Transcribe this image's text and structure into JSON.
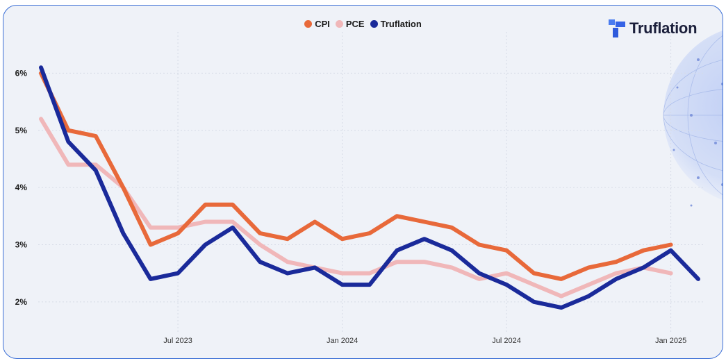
{
  "logo": {
    "text": "Truflation"
  },
  "colors": {
    "CPI": "#e8693a",
    "PCE": "#f0b7b9",
    "Truflation": "#1a2a9a"
  },
  "chart_data": {
    "type": "line",
    "x": [
      "2023-02",
      "2023-03",
      "2023-04",
      "2023-05",
      "2023-06",
      "2023-07",
      "2023-08",
      "2023-09",
      "2023-10",
      "2023-11",
      "2023-12",
      "2024-01",
      "2024-02",
      "2024-03",
      "2024-04",
      "2024-05",
      "2024-06",
      "2024-07",
      "2024-08",
      "2024-09",
      "2024-10",
      "2024-11",
      "2024-12",
      "2025-01",
      "2025-02"
    ],
    "x_ticks": [
      "Jul 2023",
      "Jan 2024",
      "Jul 2024",
      "Jan 2025"
    ],
    "x_tick_values": [
      "2023-07",
      "2024-01",
      "2024-07",
      "2025-01"
    ],
    "y_ticks": [
      "2%",
      "3%",
      "4%",
      "5%",
      "6%"
    ],
    "y_tick_values": [
      2,
      3,
      4,
      5,
      6
    ],
    "ylim": [
      1.5,
      6.6
    ],
    "grid": true,
    "legend": "top-center",
    "series": [
      {
        "name": "CPI",
        "values": [
          6.0,
          5.0,
          4.9,
          4.0,
          3.0,
          3.2,
          3.7,
          3.7,
          3.2,
          3.1,
          3.4,
          3.1,
          3.2,
          3.5,
          3.4,
          3.3,
          3.0,
          2.9,
          2.5,
          2.4,
          2.6,
          2.7,
          2.9,
          3.0,
          null
        ]
      },
      {
        "name": "PCE",
        "values": [
          5.2,
          4.4,
          4.4,
          4.0,
          3.3,
          3.3,
          3.4,
          3.4,
          3.0,
          2.7,
          2.6,
          2.5,
          2.5,
          2.7,
          2.7,
          2.6,
          2.4,
          2.5,
          2.3,
          2.1,
          2.3,
          2.5,
          2.6,
          2.5,
          null
        ]
      },
      {
        "name": "Truflation",
        "values": [
          6.1,
          4.8,
          4.3,
          3.2,
          2.4,
          2.5,
          3.0,
          3.3,
          2.7,
          2.5,
          2.6,
          2.3,
          2.3,
          2.9,
          3.1,
          2.9,
          2.5,
          2.3,
          2.0,
          1.9,
          2.1,
          2.4,
          2.6,
          2.9,
          2.4
        ]
      }
    ]
  }
}
